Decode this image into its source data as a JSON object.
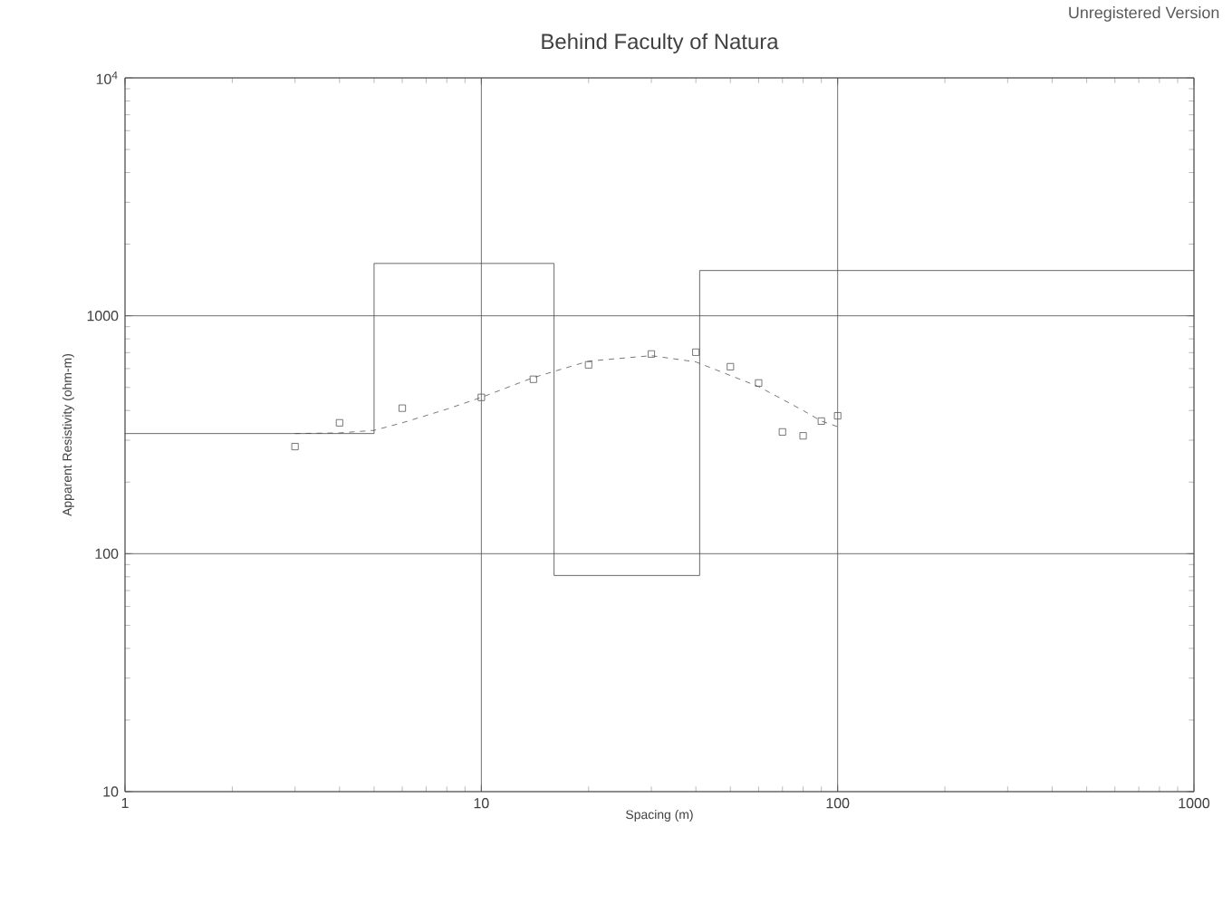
{
  "chart_data": {
    "type": "scatter",
    "title": "Behind Faculty of Natura",
    "xlabel": "Spacing (m)",
    "ylabel": "Apparent Resistivity (ohm-m)",
    "annotations": [
      "Unregistered Version"
    ],
    "log": "xy",
    "grid": true,
    "xlim": [
      1,
      1000
    ],
    "ylim": [
      10,
      10000
    ],
    "xticks": [
      1,
      10,
      100,
      1000
    ],
    "yticks": [
      10,
      100,
      1000,
      {
        "value": 10000,
        "label": "10$^{4}$"
      }
    ],
    "series": [
      {
        "marker": "square",
        "color": "#555555",
        "x": [
          3,
          4,
          6,
          10,
          14,
          20,
          30,
          40,
          50,
          60,
          70,
          80,
          90,
          100
        ],
        "values": [
          282,
          355,
          409,
          454,
          541,
          622,
          691,
          703,
          611,
          522,
          325,
          313,
          361,
          380
        ]
      },
      {
        "type": "line",
        "line_style": "dashed",
        "marker": "none",
        "color": "#555555",
        "x": [
          3,
          4,
          5,
          6,
          8,
          10,
          14,
          20,
          30,
          40,
          60,
          80,
          90,
          100
        ],
        "values": [
          320,
          322,
          330,
          355,
          405,
          454,
          550,
          645,
          680,
          640,
          504,
          400,
          361,
          342
        ]
      },
      {
        "type": "step",
        "line_style": "solid",
        "marker": "none",
        "color": "#444444",
        "x": [
          1,
          5,
          16,
          41,
          1000
        ],
        "values": [
          320,
          1660,
          81,
          1550,
          1550
        ]
      }
    ]
  }
}
